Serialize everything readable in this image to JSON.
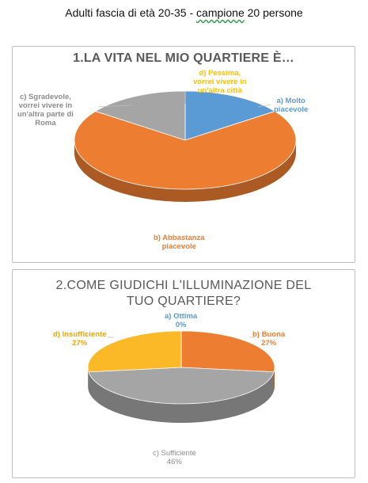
{
  "header": {
    "before": "Adulti fascia di età 20-35 - ",
    "underlined": "campione",
    "after": " 20 persone"
  },
  "chart_data": [
    {
      "type": "pie",
      "title": "1.LA VITA NEL MIO QUARTIERE È…",
      "slices": [
        {
          "label_lines": [
            "a) Molto",
            "piacevole"
          ],
          "value": 15,
          "color": "#5b9bd5"
        },
        {
          "label_lines": [
            "b) Abbastanza",
            "piacevole"
          ],
          "value": 70,
          "color": "#ed7d31"
        },
        {
          "label_lines": [
            "c) Sgradevole,",
            "vorrei vivere in",
            "un'altra parte di",
            "Roma"
          ],
          "value": 15,
          "color": "#a5a5a5"
        },
        {
          "label_lines": [
            "d) Pessima,",
            "vorrei vivere in",
            "un'altra città"
          ],
          "value": 0,
          "color": "#ffc000"
        }
      ]
    },
    {
      "type": "pie",
      "title": [
        "2.COME GIUDICHI L'ILLUMINAZIONE DEL",
        "TUO QUARTIERE?"
      ],
      "slices": [
        {
          "label_lines": [
            "a) Ottima",
            "0%"
          ],
          "value": 0,
          "color": "#5b9bd5"
        },
        {
          "label_lines": [
            "b) Buona",
            "27%"
          ],
          "value": 27,
          "color": "#ed7d31"
        },
        {
          "label_lines": [
            "c) Sufficiente",
            "46%"
          ],
          "value": 46,
          "color": "#a5a5a5"
        },
        {
          "label_lines": [
            "d) Insufficiente",
            "27%"
          ],
          "value": 27,
          "color": "#fbb827"
        }
      ]
    }
  ]
}
